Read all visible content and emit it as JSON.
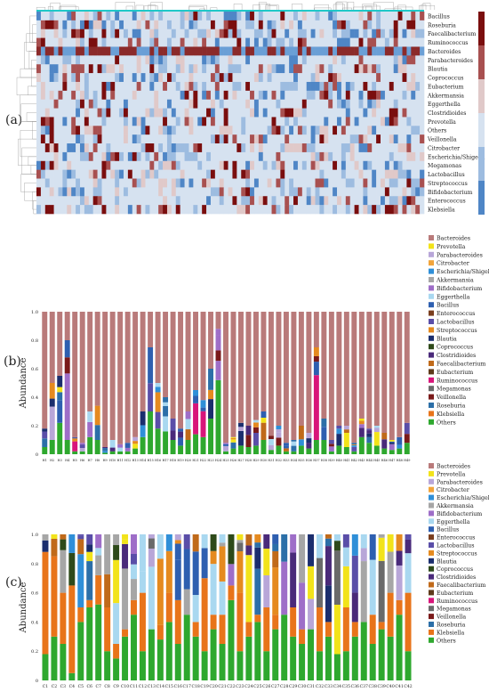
{
  "panels": {
    "a": {
      "label": "(a)"
    },
    "b": {
      "label": "(b)"
    },
    "c": {
      "label": "(c)"
    }
  },
  "colors": {
    "Bacteroides": "#B97A7A",
    "Prevotella": "#F2E31A",
    "Parabacteroides": "#B8A6D8",
    "Citrobacter": "#F2A43A",
    "Escherichia/Shigella": "#2F8FD8",
    "Akkermansia": "#A6A6A6",
    "Bifidobacterium": "#9E6EC8",
    "Eggerthella": "#A9D8F0",
    "Bacillus": "#2E5FB0",
    "Enterococcus": "#7A3E1E",
    "Lactobacillus": "#5A4EA8",
    "Streptococcus": "#E58A1F",
    "Blautia": "#1B2E6E",
    "Coprococcus": "#2E4A1A",
    "Clostridioides": "#4A2A7A",
    "Faecalibacterium": "#C06A1A",
    "Eubacterium": "#5E3A1A",
    "Ruminococcus": "#D8157A",
    "Megamonas": "#6A6A6A",
    "Veillonella": "#7A1A1A",
    "Roseburia": "#2C6FA8",
    "Klebsiella": "#E8741A",
    "Others": "#2EA82E"
  },
  "chart_data": [
    {
      "type": "heatmap",
      "rows": [
        "Bacillus",
        "Roseburia",
        "Faecalibacterium",
        "Ruminococcus",
        "Bacteroides",
        "Parabacteroides",
        "Blautia",
        "Coprococcus",
        "Eubacterium",
        "Akkermansia",
        "Eggerthella",
        "Clostridioides",
        "Prevotella",
        "Others",
        "Veillonella",
        "Citrobacter",
        "Escherichia/Shigella",
        "Megamonas",
        "Lactobacillus",
        "Streptococcus",
        "Bifidobacterium",
        "Enterococcus",
        "Klebsiella"
      ],
      "columns_count": 89
    },
    {
      "type": "bar",
      "stacked": true,
      "ylabel": "Abundance",
      "ylim": [
        0,
        1
      ],
      "yticks": [
        "0",
        "0.2",
        "0.4",
        "0.6",
        "0.8",
        "1.0"
      ],
      "categories": [
        "H1",
        "H2",
        "H3",
        "H4",
        "H5",
        "H6",
        "H7",
        "H8",
        "H9",
        "H10",
        "H11",
        "H12",
        "H13",
        "H14",
        "H15",
        "H16",
        "H17",
        "H18",
        "H19",
        "H20",
        "H21",
        "H22",
        "H23",
        "H24",
        "H25",
        "H26",
        "H27",
        "H28",
        "H29",
        "H30",
        "H31",
        "H32",
        "H33",
        "H34",
        "H35",
        "H36",
        "H37",
        "H38",
        "H39",
        "H40",
        "H41",
        "H42",
        "H43",
        "H44",
        "H45",
        "H46",
        "H47",
        "H48",
        "H49"
      ],
      "legend": [
        "Bacteroides",
        "Prevotella",
        "Parabacteroides",
        "Citrobacter",
        "Escherichia/Shigella",
        "Akkermansia",
        "Bifidobacterium",
        "Eggerthella",
        "Bacillus",
        "Enterococcus",
        "Lactobacillus",
        "Streptococcus",
        "Blautia",
        "Coprococcus",
        "Clostridioides",
        "Faecalibacterium",
        "Eubacterium",
        "Ruminococcus",
        "Megamonas",
        "Veillonella",
        "Roseburia",
        "Klebsiella",
        "Others"
      ],
      "top_series": "Bacteroides",
      "top_values": [
        0.82,
        0.5,
        0.45,
        0.2,
        0.88,
        0.92,
        0.7,
        0.66,
        0.95,
        0.9,
        0.93,
        0.92,
        0.88,
        0.7,
        0.25,
        0.5,
        0.6,
        0.75,
        0.82,
        0.7,
        0.55,
        0.62,
        0.4,
        0.12,
        0.92,
        0.88,
        0.78,
        0.8,
        0.76,
        0.7,
        0.87,
        0.8,
        0.92,
        0.9,
        0.8,
        0.85,
        0.25,
        0.75,
        0.9,
        0.8,
        0.8,
        0.92,
        0.75,
        0.82,
        0.8,
        0.85,
        0.9,
        0.88,
        0.78
      ],
      "others": [
        0.05,
        0.1,
        0.22,
        0.1,
        0.02,
        0.02,
        0.12,
        0.1,
        0.01,
        0.02,
        0.02,
        0.02,
        0.04,
        0.12,
        0.3,
        0.18,
        0.16,
        0.1,
        0.06,
        0.1,
        0.14,
        0.12,
        0.25,
        0.52,
        0.02,
        0.04,
        0.06,
        0.05,
        0.06,
        0.1,
        0.03,
        0.06,
        0.02,
        0.02,
        0.06,
        0.04,
        0.1,
        0.1,
        0.02,
        0.06,
        0.05,
        0.02,
        0.12,
        0.08,
        0.06,
        0.04,
        0.03,
        0.04,
        0.08
      ]
    },
    {
      "type": "bar",
      "stacked": true,
      "ylabel": "Abundance",
      "ylim": [
        0,
        1
      ],
      "yticks": [
        "0",
        "0.2",
        "0.4",
        "0.6",
        "0.8",
        "1.0"
      ],
      "categories": [
        "C1",
        "C2",
        "C3",
        "C4",
        "C5",
        "C6",
        "C7",
        "C8",
        "C9",
        "C10",
        "C11",
        "C12",
        "C13",
        "C14",
        "C15",
        "C16",
        "C17",
        "C18",
        "C19",
        "C20",
        "C21",
        "C22",
        "C23",
        "C24",
        "C25",
        "C26",
        "C27",
        "C28",
        "C29",
        "C30",
        "C31",
        "C32",
        "C33",
        "C34",
        "C35",
        "C36",
        "C37",
        "C38",
        "C39",
        "C40",
        "C41",
        "C42"
      ],
      "legend": [
        "Bacteroides",
        "Prevotella",
        "Parabacteroides",
        "Citrobacter",
        "Escherichia/Shigella",
        "Akkermansia",
        "Bifidobacterium",
        "Eggerthella",
        "Bacillus",
        "Enterococcus",
        "Lactobacillus",
        "Streptococcus",
        "Blautia",
        "Coprococcus",
        "Clostridioides",
        "Faecalibacterium",
        "Eubacterium",
        "Ruminococcus",
        "Megamonas",
        "Veillonella",
        "Roseburia",
        "Klebsiella",
        "Others"
      ],
      "others": [
        0.18,
        0.3,
        0.25,
        0.05,
        0.4,
        0.5,
        0.52,
        0.2,
        0.15,
        0.3,
        0.45,
        0.2,
        0.35,
        0.28,
        0.4,
        0.25,
        0.45,
        0.3,
        0.2,
        0.35,
        0.25,
        0.55,
        0.2,
        0.3,
        0.4,
        0.2,
        0.35,
        0.45,
        0.3,
        0.25,
        0.35,
        0.2,
        0.3,
        0.18,
        0.2,
        0.3,
        0.4,
        0.25,
        0.35,
        0.3,
        0.45,
        0.2
      ],
      "klebsiella": [
        0.7,
        0.55,
        0.35,
        0.6,
        0.1,
        0.05,
        0.2,
        0.3,
        0.1,
        0.05,
        0.1,
        0.4,
        0.0,
        0.1,
        0.2,
        0.3,
        0.0,
        0.1,
        0.5,
        0.1,
        0.2,
        0.1,
        0.4,
        0.1,
        0.05,
        0.3,
        0.1,
        0.0,
        0.2,
        0.1,
        0.0,
        0.3,
        0.1,
        0.0,
        0.3,
        0.1,
        0.0,
        0.2,
        0.05,
        0.3,
        0.1,
        0.4
      ]
    }
  ]
}
